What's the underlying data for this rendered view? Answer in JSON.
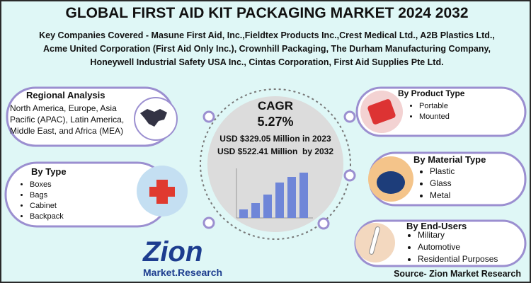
{
  "header": {
    "title": "GLOBAL FIRST AID KIT PACKAGING MARKET 2024 2032",
    "companies": [
      "Key Companies Covered - Masune First Aid, Inc.,Fieldtex Products Inc.,Crest Medical Ltd., A2B Plastics Ltd.,",
      "Acme United Corporation (First Aid Only Inc.), Crownhill Packaging, The Durham Manufacturing Company,",
      "Honeywell Industrial Safety USA Inc., Cintas Corporation, First Aid Supplies Pte Ltd."
    ]
  },
  "center": {
    "label": "CAGR",
    "cagr": "5.27%",
    "value_2023": "USD $329.05 Million in 2023",
    "value_2032": "USD $522.41 Million  by 2032"
  },
  "regional": {
    "title": "Regional Analysis",
    "text": "North America, Europe, Asia Pacific (APAC), Latin America, Middle East, and Africa (MEA)"
  },
  "by_type": {
    "title": "By Type",
    "items": [
      "Boxes",
      "Bags",
      "Cabinet",
      "Backpack"
    ]
  },
  "by_product_type": {
    "title": "By Product Type",
    "items": [
      "Portable",
      "Mounted"
    ]
  },
  "by_material_type": {
    "title": "By Material Type",
    "items": [
      "Plastic",
      "Glass",
      "Metal"
    ]
  },
  "by_end_users": {
    "title": "By End-Users",
    "items": [
      "Military",
      "Automotive",
      "Residential Purposes"
    ]
  },
  "logo": {
    "name": "Zion",
    "sub": "Market.Research"
  },
  "source": "Source- Zion Market Research"
}
